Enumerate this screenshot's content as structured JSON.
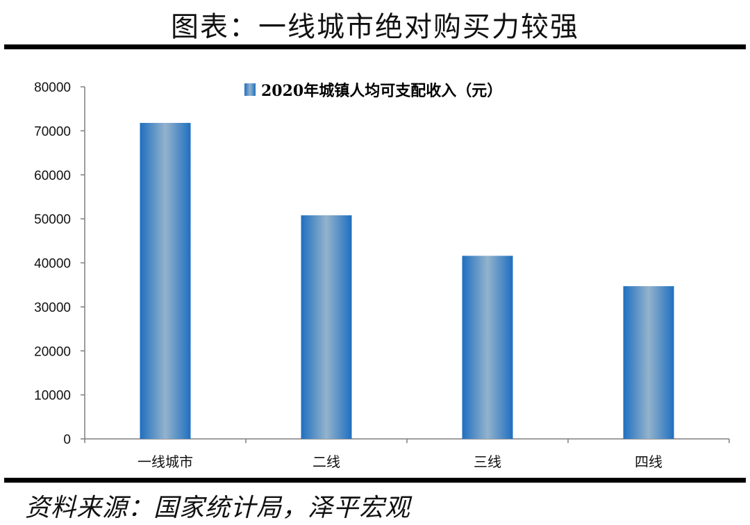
{
  "page": {
    "title": "图表：一线城市绝对购买力较强",
    "source": "资料来源：国家统计局，泽平宏观"
  },
  "colors": {
    "bar_edge": "#1f6fc0",
    "bar_center": "#93b3cc",
    "axis": "#7f7f7f"
  },
  "chart_data": {
    "type": "bar",
    "categories": [
      "一线城市",
      "二线",
      "三线",
      "四线"
    ],
    "series": [
      {
        "name": "2020年城镇人均可支配收入（元）",
        "values": [
          71800,
          50800,
          41600,
          34700
        ]
      }
    ],
    "ylim": [
      0,
      80000
    ],
    "yticks": [
      0,
      10000,
      20000,
      30000,
      40000,
      50000,
      60000,
      70000,
      80000
    ],
    "legend_position": "top-center",
    "grid": false
  }
}
